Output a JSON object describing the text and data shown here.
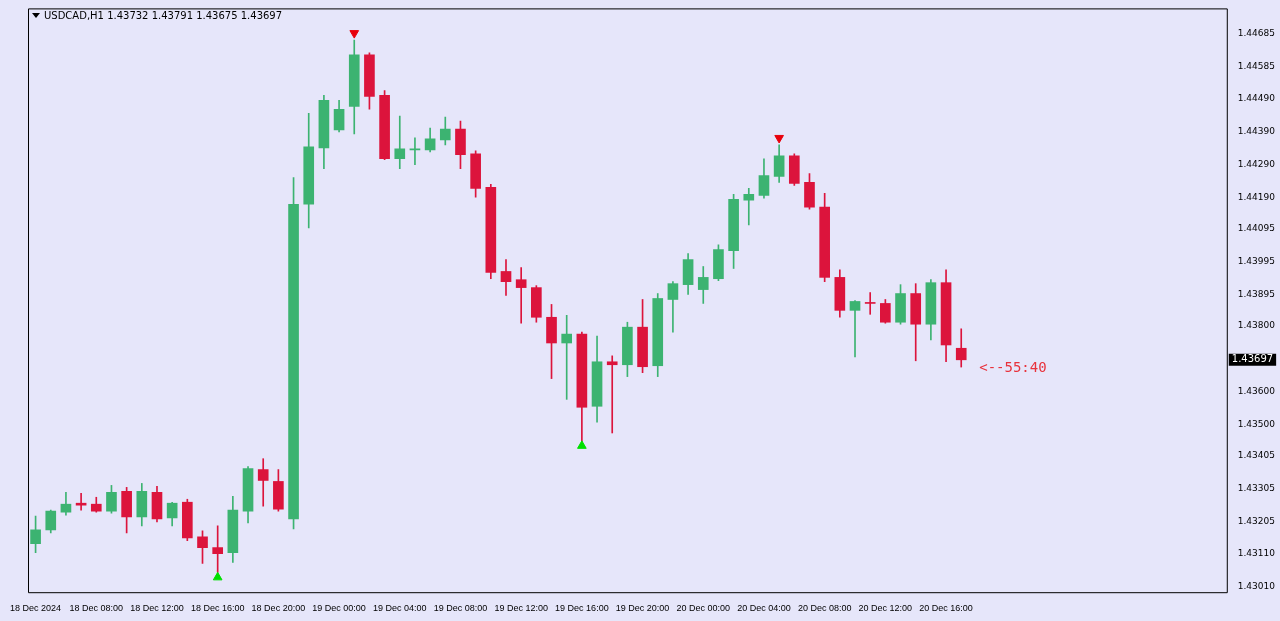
{
  "chart_data": {
    "type": "candlestick",
    "title": "USDCAD,H1 1.43732 1.43791 1.43675 1.43697",
    "categories": [
      "18 Dec 2024",
      null,
      null,
      null,
      "18 Dec 08:00",
      null,
      null,
      null,
      "18 Dec 12:00",
      null,
      null,
      null,
      "18 Dec 16:00",
      null,
      null,
      null,
      "18 Dec 20:00",
      null,
      null,
      null,
      "19 Dec 00:00",
      null,
      null,
      null,
      "19 Dec 04:00",
      null,
      null,
      null,
      "19 Dec 08:00",
      null,
      null,
      null,
      "19 Dec 12:00",
      null,
      null,
      null,
      "19 Dec 16:00",
      null,
      null,
      null,
      "19 Dec 20:00",
      null,
      null,
      null,
      "20 Dec 00:00",
      null,
      null,
      null,
      "20 Dec 04:00",
      null,
      null,
      null,
      "20 Dec 08:00",
      null,
      null,
      null,
      "20 Dec 12:00",
      null,
      null,
      null,
      "20 Dec 16:00",
      null,
      null,
      null,
      null,
      null,
      null,
      null,
      null,
      null,
      null,
      null,
      null,
      null,
      null,
      null,
      null,
      null,
      null
    ],
    "series": [
      {
        "type": "candlestick",
        "ohlc": [
          [
            1.43139,
            1.43223,
            1.43112,
            1.43181
          ],
          [
            1.43181,
            1.43241,
            1.43172,
            1.43238
          ],
          [
            1.43235,
            1.43295,
            1.43226,
            1.43259
          ],
          [
            1.43262,
            1.43292,
            1.43241,
            1.43256
          ],
          [
            1.43259,
            1.4328,
            1.43235,
            1.43238
          ],
          [
            1.43238,
            1.43316,
            1.43232,
            1.43295
          ],
          [
            1.43298,
            1.4331,
            1.43172,
            1.4322
          ],
          [
            1.4322,
            1.43322,
            1.43193,
            1.43298
          ],
          [
            1.43295,
            1.43313,
            1.43205,
            1.43214
          ],
          [
            1.43217,
            1.43265,
            1.43193,
            1.43262
          ],
          [
            1.43265,
            1.43274,
            1.43148,
            1.43157
          ],
          [
            1.4316,
            1.43178,
            1.43079,
            1.43127
          ],
          [
            1.43127,
            1.43193,
            1.43052,
            1.43109
          ],
          [
            1.43112,
            1.43283,
            1.43082,
            1.43241
          ],
          [
            1.43238,
            1.43373,
            1.43202,
            1.43367
          ],
          [
            1.43364,
            1.43397,
            1.43253,
            1.43331
          ],
          [
            1.43328,
            1.43364,
            1.43238,
            1.43244
          ],
          [
            1.43214,
            1.4425,
            1.43184,
            1.44169
          ],
          [
            1.44169,
            1.44445,
            1.44097,
            1.44343
          ],
          [
            1.4434,
            1.44499,
            1.44277,
            1.44484
          ],
          [
            1.44394,
            1.44484,
            1.44388,
            1.44457
          ],
          [
            1.44466,
            1.44667,
            1.44382,
            1.44622
          ],
          [
            1.44622,
            1.44628,
            1.44457,
            1.44496
          ],
          [
            1.44499,
            1.44514,
            1.44304,
            1.44307
          ],
          [
            1.44307,
            1.44436,
            1.44277,
            1.44337
          ],
          [
            1.44334,
            1.4437,
            1.44289,
            1.44337
          ],
          [
            1.44334,
            1.444,
            1.44328,
            1.44367
          ],
          [
            1.44364,
            1.44433,
            1.44349,
            1.44397
          ],
          [
            1.44397,
            1.44421,
            1.44277,
            1.44319
          ],
          [
            1.44322,
            1.44331,
            1.4419,
            1.44217
          ],
          [
            1.4422,
            1.44229,
            1.43943,
            1.43962
          ],
          [
            1.43965,
            1.44001,
            1.43892,
            1.43934
          ],
          [
            1.4394,
            1.43977,
            1.43808,
            1.43916
          ],
          [
            1.43916,
            1.43922,
            1.43811,
            1.43826
          ],
          [
            1.43826,
            1.43865,
            1.4364,
            1.43748
          ],
          [
            1.43748,
            1.43832,
            1.43577,
            1.43775
          ],
          [
            1.43775,
            1.43781,
            1.43448,
            1.43553
          ],
          [
            1.43556,
            1.43769,
            1.43508,
            1.43691
          ],
          [
            1.43691,
            1.43709,
            1.43475,
            1.43682
          ],
          [
            1.43682,
            1.43811,
            1.43646,
            1.43796
          ],
          [
            1.43796,
            1.4388,
            1.43658,
            1.43676
          ],
          [
            1.43679,
            1.43898,
            1.43646,
            1.43883
          ],
          [
            1.4388,
            1.43934,
            1.43781,
            1.43928
          ],
          [
            1.43925,
            1.44019,
            1.43895,
            1.44001
          ],
          [
            1.4391,
            1.4398,
            1.43868,
            1.43947
          ],
          [
            1.43943,
            1.44046,
            1.43937,
            1.44031
          ],
          [
            1.44028,
            1.44199,
            1.43974,
            1.44184
          ],
          [
            1.44181,
            1.44217,
            1.44106,
            1.44199
          ],
          [
            1.44196,
            1.44307,
            1.44187,
            1.44256
          ],
          [
            1.44253,
            1.44349,
            1.44235,
            1.44316
          ],
          [
            1.44316,
            1.44322,
            1.44226,
            1.44232
          ],
          [
            1.44235,
            1.44262,
            1.44154,
            1.4416
          ],
          [
            1.4416,
            1.44202,
            1.43934,
            1.43947
          ],
          [
            1.43947,
            1.4397,
            1.43826,
            1.43847
          ],
          [
            1.43847,
            1.43877,
            1.43706,
            1.43874
          ],
          [
            1.43871,
            1.43901,
            1.43835,
            1.43868
          ],
          [
            1.43868,
            1.4388,
            1.43808,
            1.43811
          ],
          [
            1.43811,
            1.43925,
            1.43805,
            1.43898
          ],
          [
            1.43898,
            1.43928,
            1.43694,
            1.43805
          ],
          [
            1.43805,
            1.4394,
            1.43757,
            1.43931
          ],
          [
            1.43931,
            1.4397,
            1.43691,
            1.43742
          ],
          [
            1.43732,
            1.43791,
            1.43675,
            1.43697
          ],
          null,
          null,
          null,
          null,
          null,
          null,
          null,
          null,
          null,
          null,
          null,
          null,
          null,
          null,
          null,
          null,
          null
        ],
        "colors": [
          "#3cb371",
          "#3cb371",
          "#3cb371",
          "#dc143c",
          "#dc143c",
          "#3cb371",
          "#dc143c",
          "#3cb371",
          "#dc143c",
          "#3cb371",
          "#dc143c",
          "#dc143c",
          "#dc143c",
          "#3cb371",
          "#3cb371",
          "#dc143c",
          "#dc143c",
          "#3cb371",
          "#3cb371",
          "#3cb371",
          "#3cb371",
          "#3cb371",
          "#dc143c",
          "#dc143c",
          "#3cb371",
          "#3cb371",
          "#3cb371",
          "#3cb371",
          "#dc143c",
          "#dc143c",
          "#dc143c",
          "#dc143c",
          "#dc143c",
          "#dc143c",
          "#dc143c",
          "#3cb371",
          "#dc143c",
          "#3cb371",
          "#dc143c",
          "#3cb371",
          "#dc143c",
          "#3cb371",
          "#3cb371",
          "#3cb371",
          "#3cb371",
          "#3cb371",
          "#3cb371",
          "#3cb371",
          "#3cb371",
          "#3cb371",
          "#dc143c",
          "#dc143c",
          "#dc143c",
          "#dc143c",
          "#3cb371",
          "#dc143c",
          "#dc143c",
          "#3cb371",
          "#dc143c",
          "#3cb371",
          "#dc143c",
          "#dc143c",
          null,
          null,
          null,
          null,
          null,
          null,
          null,
          null,
          null,
          null,
          null,
          null,
          null,
          null,
          null,
          null,
          null
        ]
      },
      {
        "type": "scatter",
        "marker": "triangle",
        "values": [
          null,
          null,
          null,
          null,
          null,
          null,
          null,
          null,
          null,
          null,
          null,
          null,
          1.43037,
          null,
          null,
          null,
          null,
          null,
          null,
          null,
          null,
          1.44688,
          null,
          null,
          null,
          null,
          null,
          null,
          null,
          null,
          null,
          null,
          null,
          null,
          null,
          null,
          1.43436,
          null,
          null,
          null,
          null,
          null,
          null,
          null,
          null,
          null,
          null,
          null,
          null,
          1.4437,
          null,
          null,
          null,
          null,
          null,
          null,
          null,
          null,
          null,
          null,
          null,
          null,
          null,
          null,
          null,
          null,
          null,
          null,
          null,
          null,
          null,
          null,
          null,
          null,
          null,
          null,
          null,
          null,
          null
        ],
        "colors": [
          null,
          null,
          null,
          null,
          null,
          null,
          null,
          null,
          null,
          null,
          null,
          null,
          "#00e000",
          null,
          null,
          null,
          null,
          null,
          null,
          null,
          null,
          "#e8000b",
          null,
          null,
          null,
          null,
          null,
          null,
          null,
          null,
          null,
          null,
          null,
          null,
          null,
          null,
          "#00e000",
          null,
          null,
          null,
          null,
          null,
          null,
          null,
          null,
          null,
          null,
          null,
          null,
          "#e8000b",
          null,
          null,
          null,
          null,
          null,
          null,
          null,
          null,
          null,
          null,
          null,
          null,
          null,
          null,
          null,
          null,
          null,
          null,
          null,
          null,
          null,
          null,
          null,
          null,
          null,
          null,
          null,
          null,
          null
        ]
      }
    ],
    "ylim": [
      1.42992,
      1.44763
    ],
    "yticks": [
      1.44685,
      1.44585,
      {
        "value": 1.4449,
        "label": "1.44490"
      },
      {
        "value": 1.4439,
        "label": "1.44390"
      },
      {
        "value": 1.4429,
        "label": "1.44290"
      },
      {
        "value": 1.4419,
        "label": "1.44190"
      },
      1.44095,
      1.43995,
      1.43895,
      {
        "value": 1.438,
        "label": "1.43800"
      },
      {
        "value": 1.436,
        "label": "1.43600"
      },
      {
        "value": 1.435,
        "label": "1.43500"
      },
      1.43405,
      1.43305,
      1.43205,
      {
        "value": 1.4311,
        "label": "1.43110"
      },
      {
        "value": 1.4301,
        "label": "1.43010"
      }
    ],
    "annotations": [
      "1.43697",
      "<--55:40"
    ]
  }
}
